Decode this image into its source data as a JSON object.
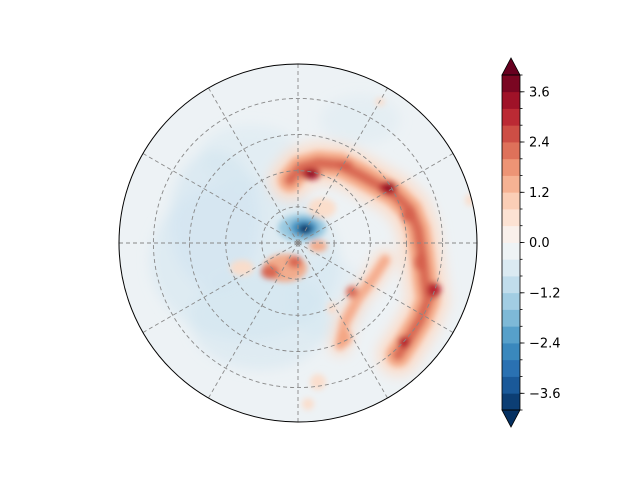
{
  "chart_data": {
    "type": "heatmap",
    "projection": "polar (south polar stereographic)",
    "title": "",
    "grid": true,
    "grid_style": "dashed gray",
    "meridians_deg": [
      0,
      30,
      60,
      90,
      120,
      150,
      180,
      210,
      240,
      270,
      300,
      330
    ],
    "parallel_rings": 4,
    "colormap": "RdBu_r",
    "colorbar": {
      "position": "right",
      "min": -4.0,
      "max": 4.0,
      "step": 0.4,
      "extend": "both",
      "tick_values": [
        3.6,
        2.4,
        1.2,
        0.0,
        -1.2,
        -2.4,
        -3.6
      ],
      "tick_labels": [
        "3.6",
        "2.4",
        "1.2",
        "0.0",
        "−1.2",
        "−2.4",
        "−3.6"
      ]
    },
    "features": [
      {
        "name": "spiral arc",
        "sign": "positive",
        "peak": 3.6,
        "angle_range_deg": [
          40,
          110
        ]
      },
      {
        "name": "spiral arc",
        "sign": "positive",
        "peak": 2.8,
        "angle_range_deg": [
          -40,
          40
        ]
      },
      {
        "name": "spiral arc",
        "sign": "positive",
        "peak": 2.4,
        "angle_range_deg": [
          -75,
          -40
        ]
      },
      {
        "name": "near-pole dipole",
        "sign": "negative",
        "peak": -3.6
      },
      {
        "name": "near-pole lobe",
        "sign": "positive",
        "peak": 2.4
      },
      {
        "name": "broad background",
        "sign": "negative",
        "peak": -0.8
      }
    ],
    "colors": {
      "dark_red": "#67001f",
      "red": "#b2182b",
      "orange_red": "#d6604d",
      "salmon": "#f4a582",
      "light_salmon": "#fddbc7",
      "neutral": "#f7f7f7",
      "light_blue": "#d1e5f0",
      "sky": "#92c5de",
      "blue": "#4393c3",
      "dark_blue": "#2166ac",
      "navy": "#053061"
    }
  }
}
